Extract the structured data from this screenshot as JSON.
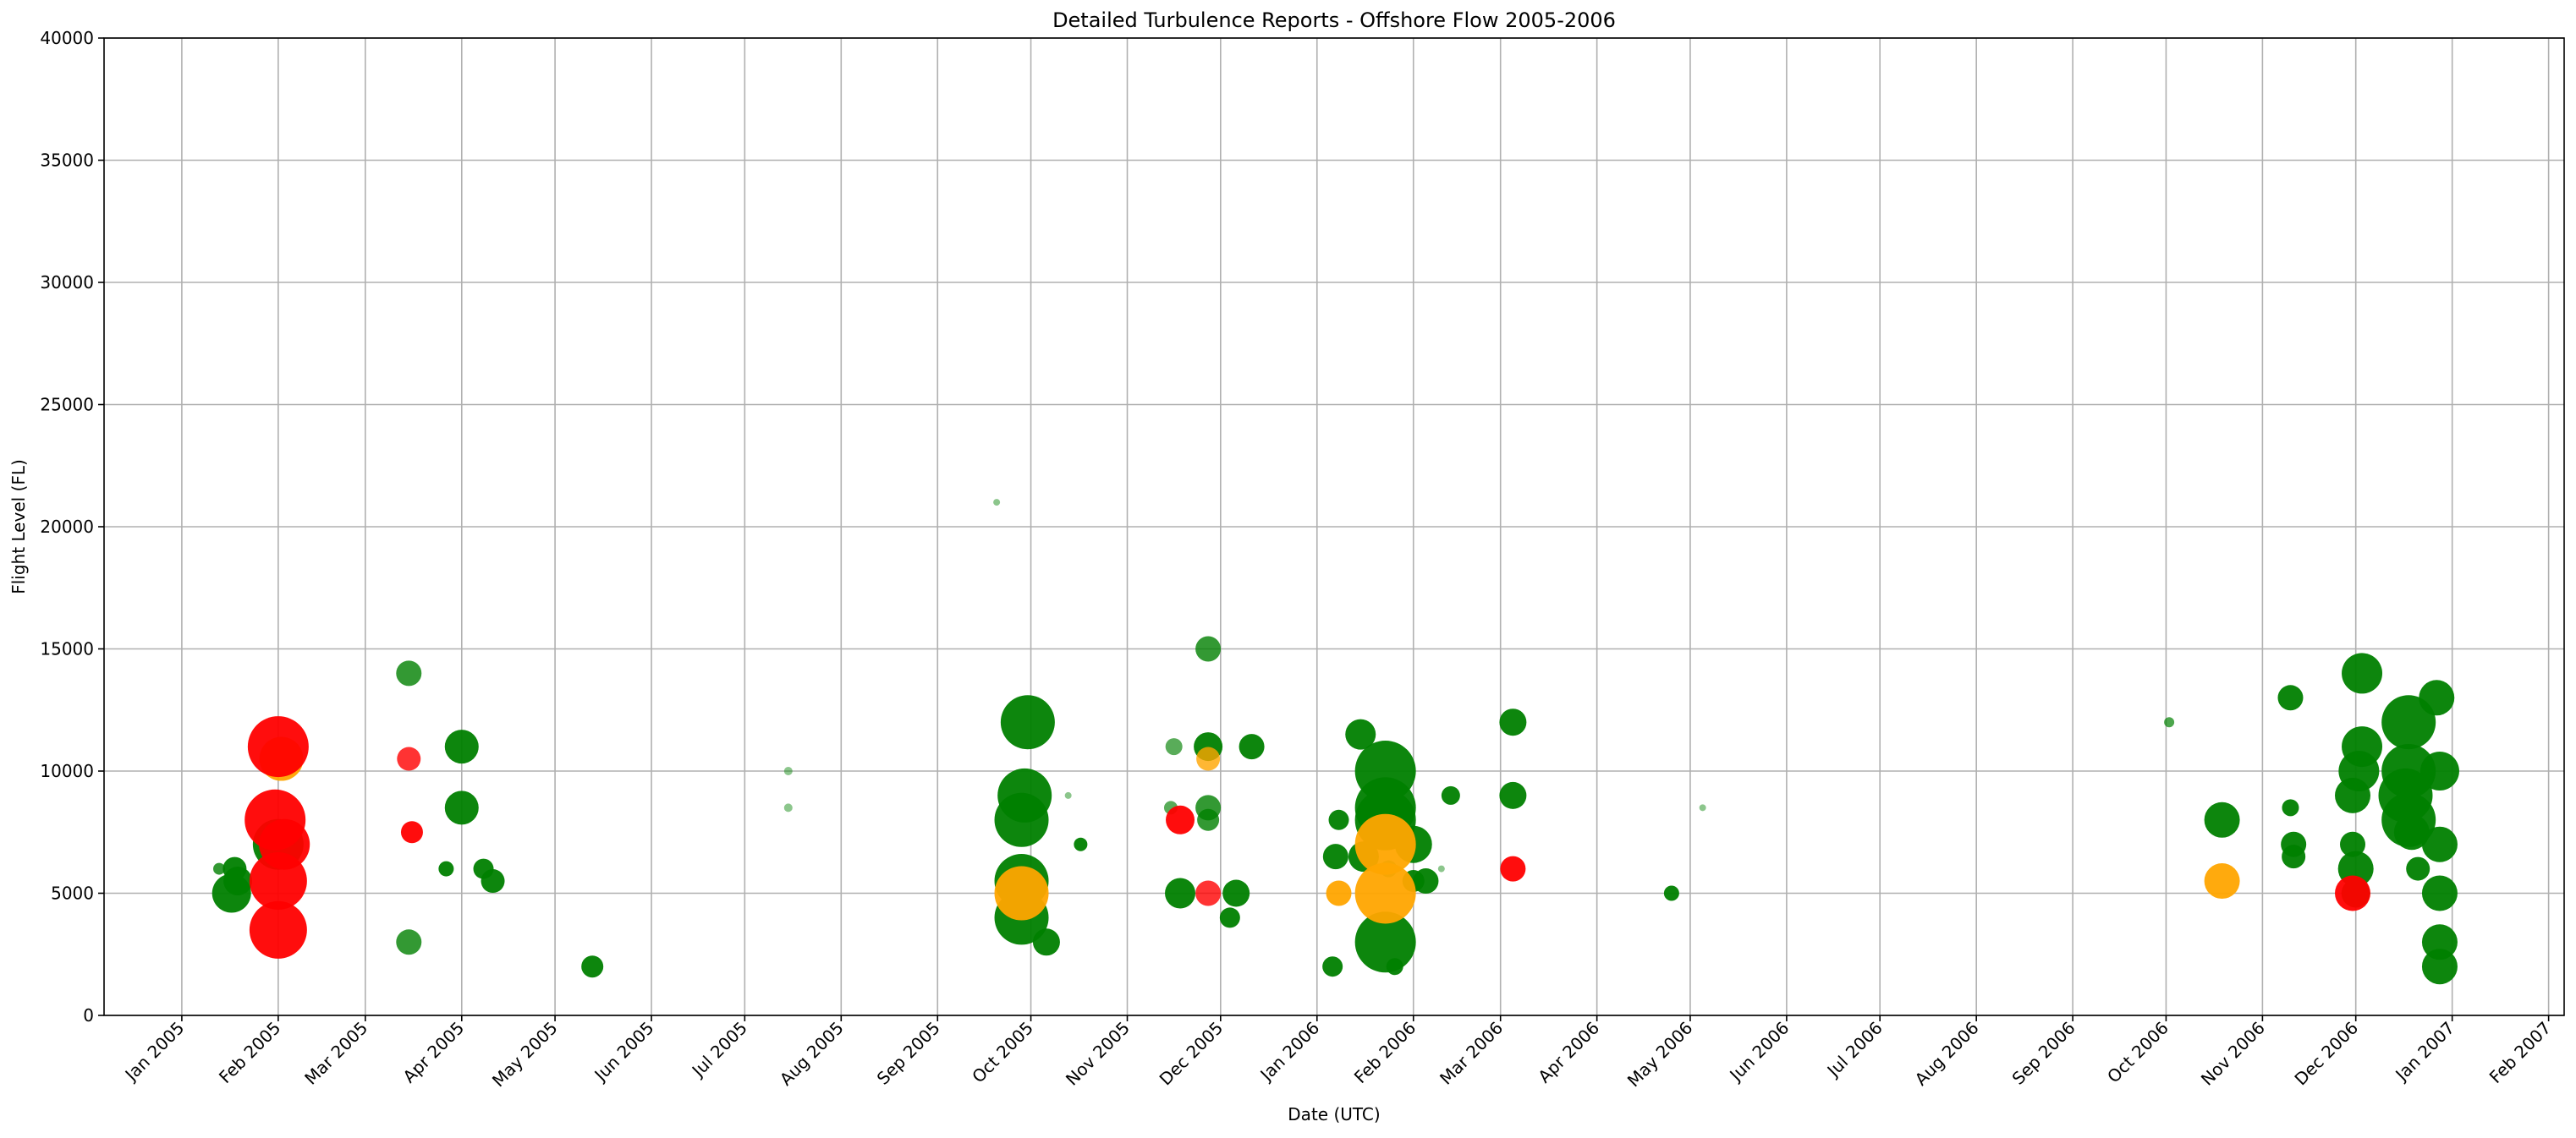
{
  "chart_data": {
    "type": "scatter",
    "title": "Detailed Turbulence Reports - Offshore Flow 2005-2006",
    "xlabel": "Date (UTC)",
    "ylabel": "Flight Level (FL)",
    "xlim": [
      "2004-12-07",
      "2007-02-06"
    ],
    "ylim": [
      0,
      40000
    ],
    "grid": true,
    "x_ticks": [
      "2005-01-01",
      "2005-02-01",
      "2005-03-01",
      "2005-04-01",
      "2005-05-01",
      "2005-06-01",
      "2005-07-01",
      "2005-08-01",
      "2005-09-01",
      "2005-10-01",
      "2005-11-01",
      "2005-12-01",
      "2006-01-01",
      "2006-02-01",
      "2006-03-01",
      "2006-04-01",
      "2006-05-01",
      "2006-06-01",
      "2006-07-01",
      "2006-08-01",
      "2006-09-01",
      "2006-10-01",
      "2006-11-01",
      "2006-12-01",
      "2007-01-01",
      "2007-02-01"
    ],
    "x_tick_labels": [
      "Jan 2005",
      "Feb 2005",
      "Mar 2005",
      "Apr 2005",
      "May 2005",
      "Jun 2005",
      "Jul 2005",
      "Aug 2005",
      "Sep 2005",
      "Oct 2005",
      "Nov 2005",
      "Dec 2005",
      "Jan 2006",
      "Feb 2006",
      "Mar 2006",
      "Apr 2006",
      "May 2006",
      "Jun 2006",
      "Jul 2006",
      "Aug 2006",
      "Sep 2006",
      "Oct 2006",
      "Nov 2006",
      "Dec 2006",
      "Jan 2007",
      "Feb 2007"
    ],
    "y_ticks": [
      0,
      5000,
      10000,
      15000,
      20000,
      25000,
      30000,
      35000,
      40000
    ],
    "y_tick_labels": [
      "0",
      "5000",
      "10000",
      "15000",
      "20000",
      "25000",
      "30000",
      "35000",
      "40000"
    ],
    "colors": {
      "green": "#008000",
      "orange": "#ffa500",
      "red": "#ff0000"
    },
    "points": [
      {
        "x": "2005-01-13",
        "y": 6000,
        "r": 7,
        "c": "green",
        "a": 0.8
      },
      {
        "x": "2005-01-18",
        "y": 6000,
        "r": 14,
        "c": "green",
        "a": 0.95
      },
      {
        "x": "2005-01-19",
        "y": 5500,
        "r": 17,
        "c": "green",
        "a": 0.95
      },
      {
        "x": "2005-01-17",
        "y": 5000,
        "r": 23,
        "c": "green",
        "a": 0.95
      },
      {
        "x": "2005-02-02",
        "y": 10500,
        "r": 26,
        "c": "orange",
        "a": 0.95
      },
      {
        "x": "2005-02-01",
        "y": 11000,
        "r": 36,
        "c": "red",
        "a": 0.95
      },
      {
        "x": "2005-01-31",
        "y": 8000,
        "r": 36,
        "c": "red",
        "a": 0.95
      },
      {
        "x": "2005-02-01",
        "y": 7000,
        "r": 30,
        "c": "green",
        "a": 0.95
      },
      {
        "x": "2005-02-03",
        "y": 7000,
        "r": 30,
        "c": "red",
        "a": 0.95
      },
      {
        "x": "2005-02-01",
        "y": 5500,
        "r": 34,
        "c": "red",
        "a": 0.95
      },
      {
        "x": "2005-02-01",
        "y": 3500,
        "r": 34,
        "c": "red",
        "a": 0.95
      },
      {
        "x": "2005-03-15",
        "y": 14000,
        "r": 15,
        "c": "green",
        "a": 0.8
      },
      {
        "x": "2005-03-15",
        "y": 10500,
        "r": 14,
        "c": "red",
        "a": 0.8
      },
      {
        "x": "2005-03-16",
        "y": 7500,
        "r": 13,
        "c": "red",
        "a": 0.95
      },
      {
        "x": "2005-03-15",
        "y": 3000,
        "r": 15,
        "c": "green",
        "a": 0.8
      },
      {
        "x": "2005-03-27",
        "y": 6000,
        "r": 9,
        "c": "green",
        "a": 0.95
      },
      {
        "x": "2005-04-01",
        "y": 11000,
        "r": 20,
        "c": "green",
        "a": 0.95
      },
      {
        "x": "2005-04-01",
        "y": 8500,
        "r": 20,
        "c": "green",
        "a": 0.95
      },
      {
        "x": "2005-04-08",
        "y": 6000,
        "r": 12,
        "c": "green",
        "a": 0.95
      },
      {
        "x": "2005-04-11",
        "y": 5500,
        "r": 14,
        "c": "green",
        "a": 0.95
      },
      {
        "x": "2005-05-13",
        "y": 2000,
        "r": 13,
        "c": "green",
        "a": 0.95
      },
      {
        "x": "2005-07-15",
        "y": 10000,
        "r": 5,
        "c": "green",
        "a": 0.45
      },
      {
        "x": "2005-07-15",
        "y": 8500,
        "r": 5,
        "c": "green",
        "a": 0.45
      },
      {
        "x": "2005-09-20",
        "y": 21000,
        "r": 4,
        "c": "green",
        "a": 0.45
      },
      {
        "x": "2005-09-30",
        "y": 12000,
        "r": 32,
        "c": "green",
        "a": 0.95
      },
      {
        "x": "2005-09-29",
        "y": 9000,
        "r": 32,
        "c": "green",
        "a": 0.95
      },
      {
        "x": "2005-09-28",
        "y": 8000,
        "r": 32,
        "c": "green",
        "a": 0.95
      },
      {
        "x": "2005-09-28",
        "y": 5500,
        "r": 32,
        "c": "green",
        "a": 0.95
      },
      {
        "x": "2005-09-28",
        "y": 4000,
        "r": 32,
        "c": "green",
        "a": 0.95
      },
      {
        "x": "2005-09-28",
        "y": 5000,
        "r": 32,
        "c": "orange",
        "a": 0.95
      },
      {
        "x": "2005-10-06",
        "y": 3000,
        "r": 16,
        "c": "green",
        "a": 0.95
      },
      {
        "x": "2005-10-13",
        "y": 9000,
        "r": 4,
        "c": "green",
        "a": 0.45
      },
      {
        "x": "2005-10-17",
        "y": 7000,
        "r": 8,
        "c": "green",
        "a": 0.95
      },
      {
        "x": "2005-11-16",
        "y": 11000,
        "r": 10,
        "c": "green",
        "a": 0.65
      },
      {
        "x": "2005-11-15",
        "y": 8500,
        "r": 8,
        "c": "green",
        "a": 0.65
      },
      {
        "x": "2005-11-18",
        "y": 8000,
        "r": 17,
        "c": "red",
        "a": 0.95
      },
      {
        "x": "2005-11-18",
        "y": 5000,
        "r": 18,
        "c": "green",
        "a": 0.95
      },
      {
        "x": "2005-11-27",
        "y": 15000,
        "r": 15,
        "c": "green",
        "a": 0.8
      },
      {
        "x": "2005-11-27",
        "y": 10500,
        "r": 14,
        "c": "orange",
        "a": 0.8
      },
      {
        "x": "2005-11-27",
        "y": 11000,
        "r": 17,
        "c": "green",
        "a": 0.95
      },
      {
        "x": "2005-11-27",
        "y": 8500,
        "r": 15,
        "c": "green",
        "a": 0.8
      },
      {
        "x": "2005-11-27",
        "y": 8000,
        "r": 13,
        "c": "green",
        "a": 0.8
      },
      {
        "x": "2005-11-27",
        "y": 5000,
        "r": 15,
        "c": "red",
        "a": 0.8
      },
      {
        "x": "2005-12-04",
        "y": 4000,
        "r": 12,
        "c": "green",
        "a": 0.95
      },
      {
        "x": "2005-12-06",
        "y": 5000,
        "r": 16,
        "c": "green",
        "a": 0.95
      },
      {
        "x": "2005-12-11",
        "y": 11000,
        "r": 15,
        "c": "green",
        "a": 0.95
      },
      {
        "x": "2006-01-06",
        "y": 2000,
        "r": 12,
        "c": "green",
        "a": 0.95
      },
      {
        "x": "2006-01-07",
        "y": 6500,
        "r": 15,
        "c": "green",
        "a": 0.95
      },
      {
        "x": "2006-01-08",
        "y": 8000,
        "r": 12,
        "c": "green",
        "a": 0.95
      },
      {
        "x": "2006-01-08",
        "y": 5000,
        "r": 15,
        "c": "orange",
        "a": 0.95
      },
      {
        "x": "2006-01-15",
        "y": 11500,
        "r": 18,
        "c": "green",
        "a": 0.95
      },
      {
        "x": "2006-01-16",
        "y": 6500,
        "r": 18,
        "c": "green",
        "a": 0.95
      },
      {
        "x": "2006-01-23",
        "y": 10000,
        "r": 36,
        "c": "green",
        "a": 0.95
      },
      {
        "x": "2006-01-23",
        "y": 8500,
        "r": 36,
        "c": "green",
        "a": 0.95
      },
      {
        "x": "2006-01-23",
        "y": 8000,
        "r": 36,
        "c": "green",
        "a": 0.95
      },
      {
        "x": "2006-01-23",
        "y": 3000,
        "r": 36,
        "c": "green",
        "a": 0.95
      },
      {
        "x": "2006-01-23",
        "y": 7000,
        "r": 36,
        "c": "orange",
        "a": 0.95
      },
      {
        "x": "2006-01-23",
        "y": 5000,
        "r": 36,
        "c": "orange",
        "a": 0.95
      },
      {
        "x": "2006-01-24",
        "y": 6000,
        "r": 10,
        "c": "green",
        "a": 0.7
      },
      {
        "x": "2006-01-26",
        "y": 2000,
        "r": 10,
        "c": "green",
        "a": 0.95
      },
      {
        "x": "2006-02-01",
        "y": 7000,
        "r": 22,
        "c": "green",
        "a": 0.95
      },
      {
        "x": "2006-02-01",
        "y": 5500,
        "r": 13,
        "c": "green",
        "a": 0.95
      },
      {
        "x": "2006-02-05",
        "y": 5500,
        "r": 15,
        "c": "green",
        "a": 0.95
      },
      {
        "x": "2006-02-10",
        "y": 6000,
        "r": 4,
        "c": "green",
        "a": 0.45
      },
      {
        "x": "2006-02-13",
        "y": 9000,
        "r": 11,
        "c": "green",
        "a": 0.95
      },
      {
        "x": "2006-03-05",
        "y": 12000,
        "r": 16,
        "c": "green",
        "a": 0.95
      },
      {
        "x": "2006-03-05",
        "y": 9000,
        "r": 16,
        "c": "green",
        "a": 0.95
      },
      {
        "x": "2006-03-05",
        "y": 6000,
        "r": 15,
        "c": "red",
        "a": 0.95
      },
      {
        "x": "2006-04-25",
        "y": 5000,
        "r": 9,
        "c": "green",
        "a": 0.95
      },
      {
        "x": "2006-05-05",
        "y": 8500,
        "r": 4,
        "c": "green",
        "a": 0.45
      },
      {
        "x": "2006-10-02",
        "y": 12000,
        "r": 6,
        "c": "green",
        "a": 0.7
      },
      {
        "x": "2006-10-19",
        "y": 8000,
        "r": 21,
        "c": "green",
        "a": 0.95
      },
      {
        "x": "2006-10-19",
        "y": 5500,
        "r": 21,
        "c": "orange",
        "a": 0.95
      },
      {
        "x": "2006-11-10",
        "y": 13000,
        "r": 15,
        "c": "green",
        "a": 0.95
      },
      {
        "x": "2006-11-10",
        "y": 8500,
        "r": 10,
        "c": "green",
        "a": 0.95
      },
      {
        "x": "2006-11-11",
        "y": 7000,
        "r": 15,
        "c": "green",
        "a": 0.95
      },
      {
        "x": "2006-11-11",
        "y": 6500,
        "r": 14,
        "c": "green",
        "a": 0.95
      },
      {
        "x": "2006-11-30",
        "y": 7000,
        "r": 15,
        "c": "green",
        "a": 0.95
      },
      {
        "x": "2006-11-30",
        "y": 5000,
        "r": 21,
        "c": "red",
        "a": 0.95
      },
      {
        "x": "2006-12-01",
        "y": 5000,
        "r": 17,
        "c": "green",
        "a": 0.95
      },
      {
        "x": "2006-12-01",
        "y": 6000,
        "r": 21,
        "c": "green",
        "a": 0.95
      },
      {
        "x": "2006-11-30",
        "y": 9000,
        "r": 21,
        "c": "green",
        "a": 0.95
      },
      {
        "x": "2006-12-02",
        "y": 10000,
        "r": 24,
        "c": "green",
        "a": 0.95
      },
      {
        "x": "2006-12-03",
        "y": 11000,
        "r": 24,
        "c": "green",
        "a": 0.95
      },
      {
        "x": "2006-12-03",
        "y": 14000,
        "r": 24,
        "c": "green",
        "a": 0.95
      },
      {
        "x": "2006-12-18",
        "y": 12000,
        "r": 32,
        "c": "green",
        "a": 0.95
      },
      {
        "x": "2006-12-18",
        "y": 10000,
        "r": 32,
        "c": "green",
        "a": 0.95
      },
      {
        "x": "2006-12-17",
        "y": 9000,
        "r": 32,
        "c": "green",
        "a": 0.95
      },
      {
        "x": "2006-12-18",
        "y": 8000,
        "r": 32,
        "c": "green",
        "a": 0.95
      },
      {
        "x": "2006-12-19",
        "y": 7500,
        "r": 21,
        "c": "green",
        "a": 0.95
      },
      {
        "x": "2006-12-21",
        "y": 6000,
        "r": 14,
        "c": "green",
        "a": 0.95
      },
      {
        "x": "2006-12-27",
        "y": 13000,
        "r": 21,
        "c": "green",
        "a": 0.95
      },
      {
        "x": "2006-12-28",
        "y": 10000,
        "r": 23,
        "c": "green",
        "a": 0.95
      },
      {
        "x": "2006-12-28",
        "y": 7000,
        "r": 21,
        "c": "green",
        "a": 0.95
      },
      {
        "x": "2006-12-28",
        "y": 5000,
        "r": 21,
        "c": "green",
        "a": 0.95
      },
      {
        "x": "2006-12-28",
        "y": 3000,
        "r": 21,
        "c": "green",
        "a": 0.95
      },
      {
        "x": "2006-12-28",
        "y": 2000,
        "r": 21,
        "c": "green",
        "a": 0.95
      }
    ]
  }
}
